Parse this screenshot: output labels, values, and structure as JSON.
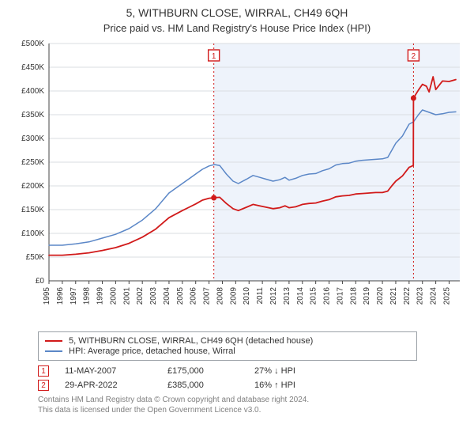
{
  "title": "5, WITHBURN CLOSE, WIRRAL, CH49 6QH",
  "subtitle": "Price paid vs. HM Land Registry's House Price Index (HPI)",
  "chart": {
    "type": "line",
    "background_color": "#ffffff",
    "grid_color": "#d9dce0",
    "axis_color": "#444444",
    "tick_font_size": 10,
    "title_font_size": 14,
    "subtitle_font_size": 13,
    "x_axis": {
      "min": 1995,
      "max": 2025.8,
      "ticks": [
        1995,
        1996,
        1997,
        1998,
        1999,
        2000,
        2001,
        2002,
        2003,
        2004,
        2005,
        2006,
        2007,
        2008,
        2009,
        2010,
        2011,
        2012,
        2013,
        2014,
        2015,
        2016,
        2017,
        2018,
        2019,
        2020,
        2021,
        2022,
        2023,
        2024,
        2025
      ],
      "tick_labels": [
        "1995",
        "1996",
        "1997",
        "1998",
        "1999",
        "2000",
        "2001",
        "2002",
        "2003",
        "2004",
        "2005",
        "2006",
        "2007",
        "2008",
        "2009",
        "2010",
        "2011",
        "2012",
        "2013",
        "2014",
        "2015",
        "2016",
        "2017",
        "2018",
        "2019",
        "2020",
        "2021",
        "2022",
        "2023",
        "2024",
        "2025"
      ],
      "label_rotation": -90
    },
    "y_axis": {
      "min": 0,
      "max": 500000,
      "ticks": [
        0,
        50000,
        100000,
        150000,
        200000,
        250000,
        300000,
        350000,
        400000,
        450000,
        500000
      ],
      "tick_labels": [
        "£0",
        "£50K",
        "£100K",
        "£150K",
        "£200K",
        "£250K",
        "£300K",
        "£350K",
        "£400K",
        "£450K",
        "£500K"
      ]
    },
    "shaded_region": {
      "x_from": 2007.36,
      "x_to": 2025.8,
      "fill": "#eef3fb"
    },
    "sale_markers": [
      {
        "n": 1,
        "x": 2007.36,
        "y": 175000,
        "color": "#d11a1a"
      },
      {
        "n": 2,
        "x": 2022.33,
        "y": 385000,
        "color": "#d11a1a"
      }
    ],
    "marker_label_box": {
      "border_color": "#d11a1a",
      "text_color": "#d11a1a",
      "fill": "#ffffff"
    },
    "series": [
      {
        "id": "hpi",
        "label": "HPI: Average price, detached house, Wirral",
        "color": "#5b87c7",
        "line_width": 1.5,
        "points": [
          [
            1995.0,
            75000
          ],
          [
            1996.0,
            75000
          ],
          [
            1997.0,
            78000
          ],
          [
            1998.0,
            82000
          ],
          [
            1999.0,
            90000
          ],
          [
            2000.0,
            98000
          ],
          [
            2001.0,
            110000
          ],
          [
            2002.0,
            128000
          ],
          [
            2003.0,
            152000
          ],
          [
            2004.0,
            185000
          ],
          [
            2005.0,
            205000
          ],
          [
            2005.5,
            215000
          ],
          [
            2006.0,
            225000
          ],
          [
            2006.5,
            235000
          ],
          [
            2007.0,
            242000
          ],
          [
            2007.4,
            245000
          ],
          [
            2007.8,
            243000
          ],
          [
            2008.3,
            225000
          ],
          [
            2008.8,
            210000
          ],
          [
            2009.2,
            205000
          ],
          [
            2009.8,
            214000
          ],
          [
            2010.3,
            222000
          ],
          [
            2010.8,
            218000
          ],
          [
            2011.3,
            214000
          ],
          [
            2011.8,
            210000
          ],
          [
            2012.3,
            213000
          ],
          [
            2012.7,
            218000
          ],
          [
            2013.0,
            212000
          ],
          [
            2013.5,
            216000
          ],
          [
            2014.0,
            222000
          ],
          [
            2014.5,
            225000
          ],
          [
            2015.0,
            226000
          ],
          [
            2015.5,
            232000
          ],
          [
            2016.0,
            236000
          ],
          [
            2016.5,
            244000
          ],
          [
            2017.0,
            247000
          ],
          [
            2017.5,
            248000
          ],
          [
            2018.0,
            252000
          ],
          [
            2018.5,
            254000
          ],
          [
            2019.0,
            255000
          ],
          [
            2019.5,
            256000
          ],
          [
            2020.0,
            257000
          ],
          [
            2020.4,
            260000
          ],
          [
            2020.7,
            275000
          ],
          [
            2021.0,
            290000
          ],
          [
            2021.5,
            305000
          ],
          [
            2022.0,
            330000
          ],
          [
            2022.33,
            335000
          ],
          [
            2022.7,
            350000
          ],
          [
            2023.0,
            360000
          ],
          [
            2023.5,
            355000
          ],
          [
            2024.0,
            350000
          ],
          [
            2024.5,
            352000
          ],
          [
            2025.0,
            355000
          ],
          [
            2025.5,
            356000
          ]
        ]
      },
      {
        "id": "price_paid",
        "label": "5, WITHBURN CLOSE, WIRRAL, CH49 6QH (detached house)",
        "color": "#d11a1a",
        "line_width": 1.8,
        "points": [
          [
            1995.0,
            54000
          ],
          [
            1996.0,
            54000
          ],
          [
            1997.0,
            56000
          ],
          [
            1998.0,
            59000
          ],
          [
            1999.0,
            64000
          ],
          [
            2000.0,
            70000
          ],
          [
            2001.0,
            79000
          ],
          [
            2002.0,
            92000
          ],
          [
            2003.0,
            109000
          ],
          [
            2004.0,
            133000
          ],
          [
            2005.0,
            148000
          ],
          [
            2005.5,
            155000
          ],
          [
            2006.0,
            162000
          ],
          [
            2006.5,
            170000
          ],
          [
            2007.0,
            174000
          ],
          [
            2007.36,
            175000
          ],
          [
            2007.8,
            176000
          ],
          [
            2008.3,
            163000
          ],
          [
            2008.8,
            152000
          ],
          [
            2009.2,
            148000
          ],
          [
            2009.8,
            155000
          ],
          [
            2010.3,
            161000
          ],
          [
            2010.8,
            158000
          ],
          [
            2011.3,
            155000
          ],
          [
            2011.8,
            152000
          ],
          [
            2012.3,
            154000
          ],
          [
            2012.7,
            158000
          ],
          [
            2013.0,
            154000
          ],
          [
            2013.5,
            156000
          ],
          [
            2014.0,
            161000
          ],
          [
            2014.5,
            163000
          ],
          [
            2015.0,
            164000
          ],
          [
            2015.5,
            168000
          ],
          [
            2016.0,
            171000
          ],
          [
            2016.5,
            177000
          ],
          [
            2017.0,
            179000
          ],
          [
            2017.5,
            180000
          ],
          [
            2018.0,
            183000
          ],
          [
            2018.5,
            184000
          ],
          [
            2019.0,
            185000
          ],
          [
            2019.5,
            186000
          ],
          [
            2020.0,
            186000
          ],
          [
            2020.4,
            189000
          ],
          [
            2020.7,
            200000
          ],
          [
            2021.0,
            210000
          ],
          [
            2021.5,
            221000
          ],
          [
            2022.0,
            239000
          ],
          [
            2022.32,
            243000
          ],
          [
            2022.33,
            385000
          ],
          [
            2022.7,
            402000
          ],
          [
            2023.0,
            414000
          ],
          [
            2023.3,
            410000
          ],
          [
            2023.5,
            398000
          ],
          [
            2023.8,
            430000
          ],
          [
            2024.0,
            403000
          ],
          [
            2024.5,
            421000
          ],
          [
            2025.0,
            420000
          ],
          [
            2025.5,
            424000
          ]
        ]
      }
    ]
  },
  "legend": {
    "items": [
      {
        "color": "#d11a1a",
        "label": "5, WITHBURN CLOSE, WIRRAL, CH49 6QH (detached house)"
      },
      {
        "color": "#5b87c7",
        "label": "HPI: Average price, detached house, Wirral"
      }
    ]
  },
  "sales": [
    {
      "n": "1",
      "date": "11-MAY-2007",
      "price": "£175,000",
      "hpi_delta": "27% ↓ HPI",
      "marker_color": "#d11a1a"
    },
    {
      "n": "2",
      "date": "29-APR-2022",
      "price": "£385,000",
      "hpi_delta": "16% ↑ HPI",
      "marker_color": "#d11a1a"
    }
  ],
  "attribution": {
    "line1": "Contains HM Land Registry data © Crown copyright and database right 2024.",
    "line2": "This data is licensed under the Open Government Licence v3.0."
  }
}
